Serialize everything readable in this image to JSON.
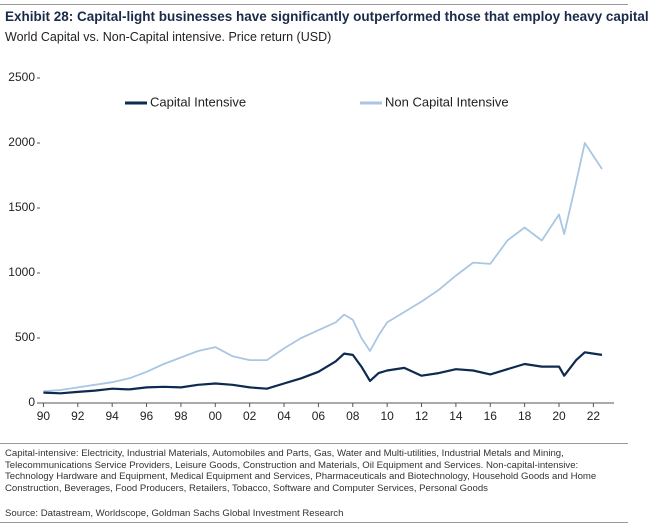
{
  "chart_data": {
    "type": "line",
    "title": "Exhibit 28: Capital-light businesses have significantly outperformed those that employ heavy capital",
    "subtitle": "World Capital vs. Non-Capital intensive. Price return (USD)",
    "footnote": "Capital-intensive: Electricity, Industrial Materials, Automobiles and Parts, Gas, Water and Multi-utilities, Industrial Metals and Mining, Telecommunications Service Providers, Leisure Goods, Construction and Materials, Oil Equipment and Services. Non-capital-intensive: Technology Hardware and Equipment, Medical Equipment and Services, Pharmaceuticals and Biotechnology, Household Goods and Home Construction, Beverages, Food Producers, Retailers, Tobacco, Software and Computer Services, Personal Goods",
    "source": "Source: Datastream, Worldscope, Goldman Sachs Global Investment Research",
    "x": [
      1990,
      1991,
      1992,
      1993,
      1994,
      1995,
      1996,
      1997,
      1998,
      1999,
      2000,
      2001,
      2002,
      2003,
      2004,
      2005,
      2006,
      2007,
      2007.5,
      2008,
      2008.5,
      2009,
      2009.5,
      2010,
      2011,
      2012,
      2013,
      2014,
      2015,
      2016,
      2017,
      2018,
      2019,
      2020,
      2020.3,
      2021,
      2021.5,
      2022,
      2022.5
    ],
    "series": [
      {
        "name": "Capital Intensive",
        "color": "#0e2a4f",
        "values": [
          80,
          75,
          85,
          95,
          110,
          105,
          120,
          125,
          120,
          140,
          150,
          140,
          120,
          110,
          150,
          190,
          240,
          320,
          380,
          370,
          280,
          170,
          230,
          250,
          270,
          210,
          230,
          260,
          250,
          220,
          260,
          300,
          280,
          280,
          210,
          330,
          390,
          380,
          370
        ]
      },
      {
        "name": "Non Capital Intensive",
        "color": "#a9c7e3",
        "values": [
          90,
          100,
          120,
          140,
          160,
          190,
          240,
          300,
          350,
          400,
          430,
          360,
          330,
          330,
          420,
          500,
          560,
          620,
          680,
          640,
          500,
          400,
          520,
          620,
          700,
          780,
          870,
          980,
          1080,
          1070,
          1250,
          1350,
          1250,
          1450,
          1300,
          1700,
          2000,
          1900,
          1800
        ]
      }
    ],
    "xlim": [
      1989.8,
      2023.2
    ],
    "xticks": [
      {
        "value": 1990,
        "label": "90"
      },
      {
        "value": 1992,
        "label": "92"
      },
      {
        "value": 1994,
        "label": "94"
      },
      {
        "value": 1996,
        "label": "96"
      },
      {
        "value": 1998,
        "label": "98"
      },
      {
        "value": 2000,
        "label": "00"
      },
      {
        "value": 2002,
        "label": "02"
      },
      {
        "value": 2004,
        "label": "04"
      },
      {
        "value": 2006,
        "label": "06"
      },
      {
        "value": 2008,
        "label": "08"
      },
      {
        "value": 2010,
        "label": "10"
      },
      {
        "value": 2012,
        "label": "12"
      },
      {
        "value": 2014,
        "label": "14"
      },
      {
        "value": 2016,
        "label": "16"
      },
      {
        "value": 2018,
        "label": "18"
      },
      {
        "value": 2020,
        "label": "20"
      },
      {
        "value": 2022,
        "label": "22"
      }
    ],
    "ylim": [
      0,
      2500
    ],
    "yticks": [
      0,
      500,
      1000,
      1500,
      2000,
      2500
    ],
    "grid": false
  }
}
